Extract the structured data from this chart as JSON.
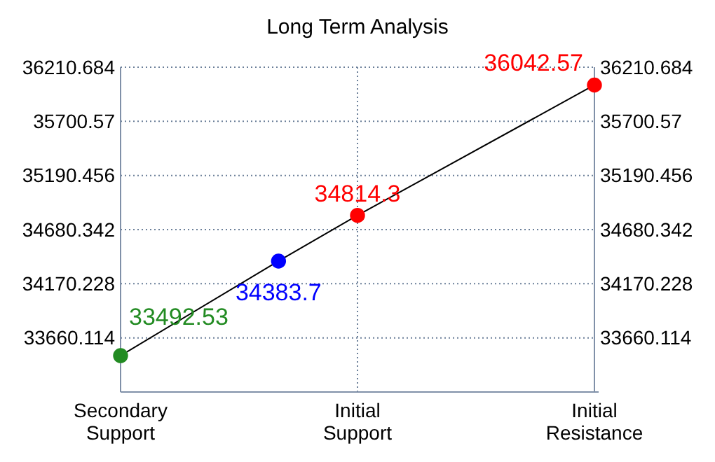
{
  "chart_data": {
    "type": "line",
    "title": "Long Term Analysis",
    "categories": [
      "Secondary\nSupport",
      null,
      null,
      "Initial\nSupport",
      null,
      null,
      "Initial\nResistance"
    ],
    "ylim": [
      33150,
      36210.684
    ],
    "yticks": [
      {
        "value": 33150,
        "label": null
      },
      33660.114,
      34170.228,
      34680.342,
      35190.456,
      35700.57,
      36210.684
    ],
    "y2lim": [
      33150,
      36210.684
    ],
    "y2ticks": [
      {
        "value": 33150,
        "label": null
      },
      33660.114,
      34170.228,
      34680.342,
      35190.456,
      35700.57,
      36210.684
    ],
    "series": [
      {
        "color": "#000000",
        "colors": [
          "#228b22",
          null,
          "#0000ff",
          "#ff0000",
          null,
          null,
          "#ff0000"
        ],
        "values": [
          33492.53,
          null,
          34383.7,
          34814.3,
          null,
          null,
          36042.57
        ]
      }
    ],
    "grid": true,
    "marker": "circle",
    "data_labels": true
  }
}
